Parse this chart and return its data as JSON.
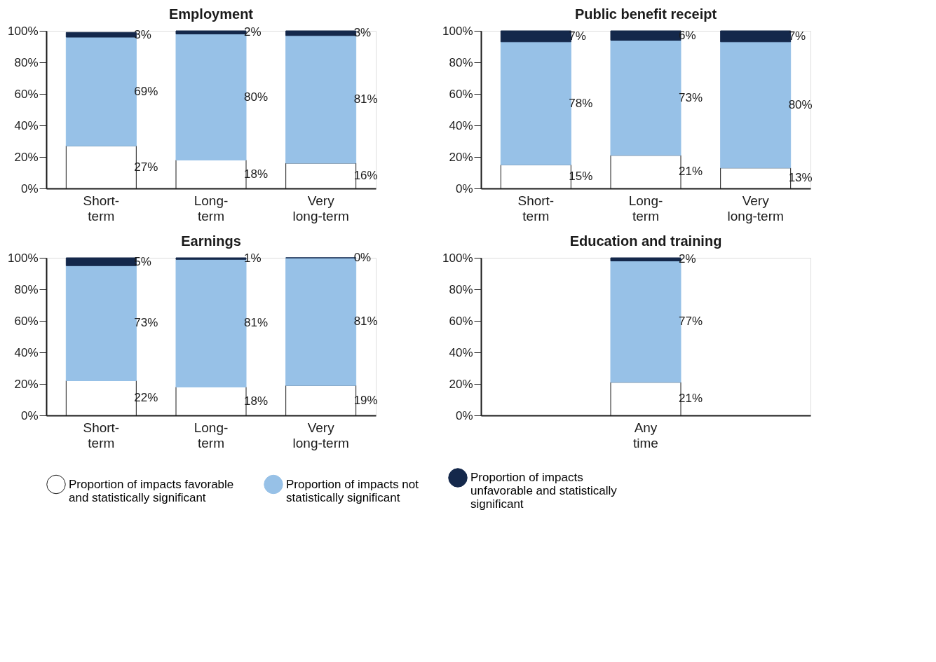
{
  "chart_data": [
    {
      "type": "bar",
      "title": "Employment",
      "categories": [
        "Short-term",
        "Long-term",
        "Very long-term"
      ],
      "stacked": true,
      "ylim": [
        0,
        100
      ],
      "yticks": [
        {
          "value": 0,
          "label": "0%"
        },
        {
          "value": 20,
          "label": "20%"
        },
        {
          "value": 40,
          "label": "40%"
        },
        {
          "value": 60,
          "label": "60%"
        },
        {
          "value": 80,
          "label": "80%"
        },
        {
          "value": 100,
          "label": "100%"
        }
      ],
      "legend": "bottom",
      "series": [
        {
          "name": "Proportion of impacts favorable and statistically significant",
          "color": "#ffffff",
          "values": [
            27,
            18,
            16
          ],
          "value_labels": [
            "27%",
            "18%",
            "16%"
          ]
        },
        {
          "name": "Proportion of impacts not statistically significant",
          "color": "#97c1e7",
          "values": [
            69,
            80,
            81
          ],
          "value_labels": [
            "69%",
            "80%",
            "81%"
          ]
        },
        {
          "name": "Proportion of impacts unfavorable and statistically significant",
          "color": "#14284b",
          "values": [
            3,
            2,
            3
          ],
          "value_labels": [
            "3%",
            "2%",
            "3%"
          ]
        }
      ]
    },
    {
      "type": "bar",
      "title": "Public benefit receipt",
      "categories": [
        "Short-term",
        "Long-term",
        "Very long-term"
      ],
      "stacked": true,
      "ylim": [
        0,
        100
      ],
      "yticks": [
        {
          "value": 0,
          "label": "0%"
        },
        {
          "value": 20,
          "label": "20%"
        },
        {
          "value": 40,
          "label": "40%"
        },
        {
          "value": 60,
          "label": "60%"
        },
        {
          "value": 80,
          "label": "80%"
        },
        {
          "value": 100,
          "label": "100%"
        }
      ],
      "legend": "bottom",
      "series": [
        {
          "name": "Proportion of impacts favorable and statistically significant",
          "color": "#ffffff",
          "values": [
            15,
            21,
            13
          ],
          "value_labels": [
            "15%",
            "21%",
            "13%"
          ]
        },
        {
          "name": "Proportion of impacts not statistically significant",
          "color": "#97c1e7",
          "values": [
            78,
            73,
            80
          ],
          "value_labels": [
            "78%",
            "73%",
            "80%"
          ]
        },
        {
          "name": "Proportion of impacts unfavorable and statistically significant",
          "color": "#14284b",
          "values": [
            7,
            6,
            7
          ],
          "value_labels": [
            "7%",
            "6%",
            "7%"
          ]
        }
      ]
    },
    {
      "type": "bar",
      "title": "Earnings",
      "categories": [
        "Short-term",
        "Long-term",
        "Very long-term"
      ],
      "stacked": true,
      "ylim": [
        0,
        100
      ],
      "yticks": [
        {
          "value": 0,
          "label": "0%"
        },
        {
          "value": 20,
          "label": "20%"
        },
        {
          "value": 40,
          "label": "40%"
        },
        {
          "value": 60,
          "label": "60%"
        },
        {
          "value": 80,
          "label": "80%"
        },
        {
          "value": 100,
          "label": "100%"
        }
      ],
      "legend": "bottom",
      "series": [
        {
          "name": "Proportion of impacts favorable and statistically significant",
          "color": "#ffffff",
          "values": [
            22,
            18,
            19
          ],
          "value_labels": [
            "22%",
            "18%",
            "19%"
          ]
        },
        {
          "name": "Proportion of impacts not statistically significant",
          "color": "#97c1e7",
          "values": [
            73,
            81,
            81
          ],
          "value_labels": [
            "73%",
            "81%",
            "81%"
          ]
        },
        {
          "name": "Proportion of impacts unfavorable and statistically significant",
          "color": "#14284b",
          "values": [
            5,
            1,
            0
          ],
          "value_labels": [
            "5%",
            "1%",
            "0%"
          ]
        }
      ]
    },
    {
      "type": "bar",
      "title": "Education and training",
      "categories": [
        "Any time"
      ],
      "stacked": true,
      "ylim": [
        0,
        100
      ],
      "yticks": [
        {
          "value": 0,
          "label": "0%"
        },
        {
          "value": 20,
          "label": "20%"
        },
        {
          "value": 40,
          "label": "40%"
        },
        {
          "value": 60,
          "label": "60%"
        },
        {
          "value": 80,
          "label": "80%"
        },
        {
          "value": 100,
          "label": "100%"
        }
      ],
      "legend": "bottom",
      "series": [
        {
          "name": "Proportion of impacts favorable and statistically significant",
          "color": "#ffffff",
          "values": [
            21
          ],
          "value_labels": [
            "21%"
          ]
        },
        {
          "name": "Proportion of impacts not statistically significant",
          "color": "#97c1e7",
          "values": [
            77
          ],
          "value_labels": [
            "77%"
          ]
        },
        {
          "name": "Proportion of impacts unfavorable and statistically significant",
          "color": "#14284b",
          "values": [
            2
          ],
          "value_labels": [
            "2%"
          ]
        }
      ]
    }
  ]
}
